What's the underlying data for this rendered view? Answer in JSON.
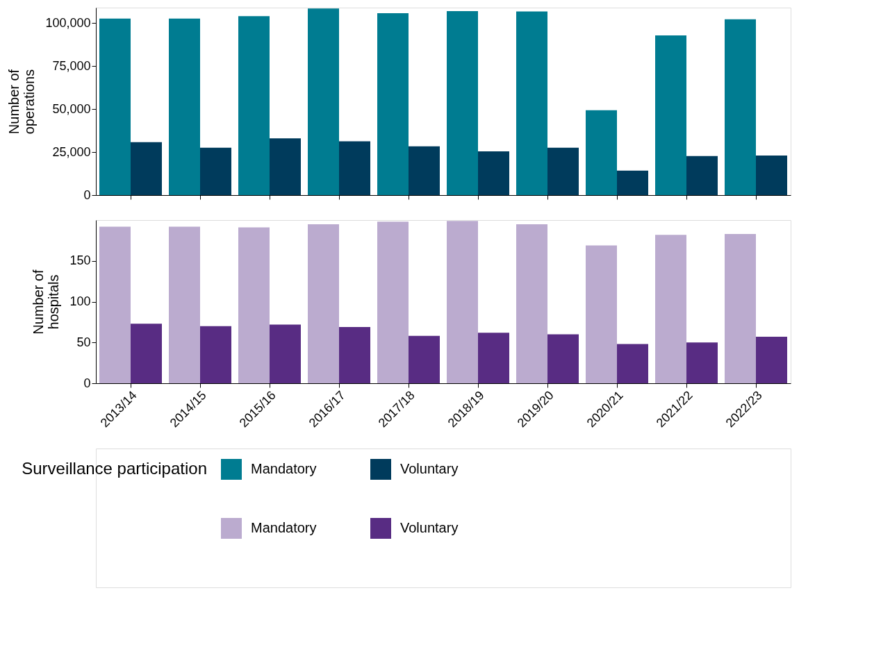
{
  "chart_data": [
    {
      "type": "bar",
      "categories": [
        "2013/14",
        "2014/15",
        "2015/16",
        "2016/17",
        "2017/18",
        "2018/19",
        "2019/20",
        "2020/21",
        "2021/22",
        "2022/23"
      ],
      "series": [
        {
          "name": "Mandatory",
          "color": "#007c91",
          "values": [
            102600,
            102600,
            104100,
            108500,
            105800,
            107000,
            106800,
            49400,
            92900,
            102200
          ]
        },
        {
          "name": "Voluntary",
          "color": "#003b5c",
          "values": [
            30800,
            27600,
            33000,
            31300,
            28400,
            25400,
            27600,
            14200,
            22700,
            23000
          ]
        }
      ],
      "ylabel": "Number of\noperations",
      "ylim": [
        0,
        109000
      ],
      "yticks": [
        0,
        {
          "value": 25000,
          "label": "25,000"
        },
        {
          "value": 50000,
          "label": "50,000"
        },
        {
          "value": 75000,
          "label": "75,000"
        },
        {
          "value": 100000,
          "label": "100,000"
        }
      ],
      "tick_labels": "y",
      "legend": "bottom",
      "legend_title": "Surveillance participation"
    },
    {
      "type": "bar",
      "categories": [
        "2013/14",
        "2014/15",
        "2015/16",
        "2016/17",
        "2017/18",
        "2018/19",
        "2019/20",
        "2020/21",
        "2021/22",
        "2022/23"
      ],
      "series": [
        {
          "name": "Mandatory",
          "color": "#bbabcf",
          "values": [
            192,
            192,
            191,
            195,
            198,
            199,
            195,
            169,
            182,
            183
          ]
        },
        {
          "name": "Voluntary",
          "color": "#582c83",
          "values": [
            73,
            70,
            72,
            69,
            58,
            62,
            60,
            48,
            50,
            57
          ]
        }
      ],
      "ylabel": "Number of\nhospitals",
      "ylim": [
        0,
        200
      ],
      "yticks": [
        0,
        50,
        100,
        150
      ],
      "legend": "bottom"
    }
  ]
}
